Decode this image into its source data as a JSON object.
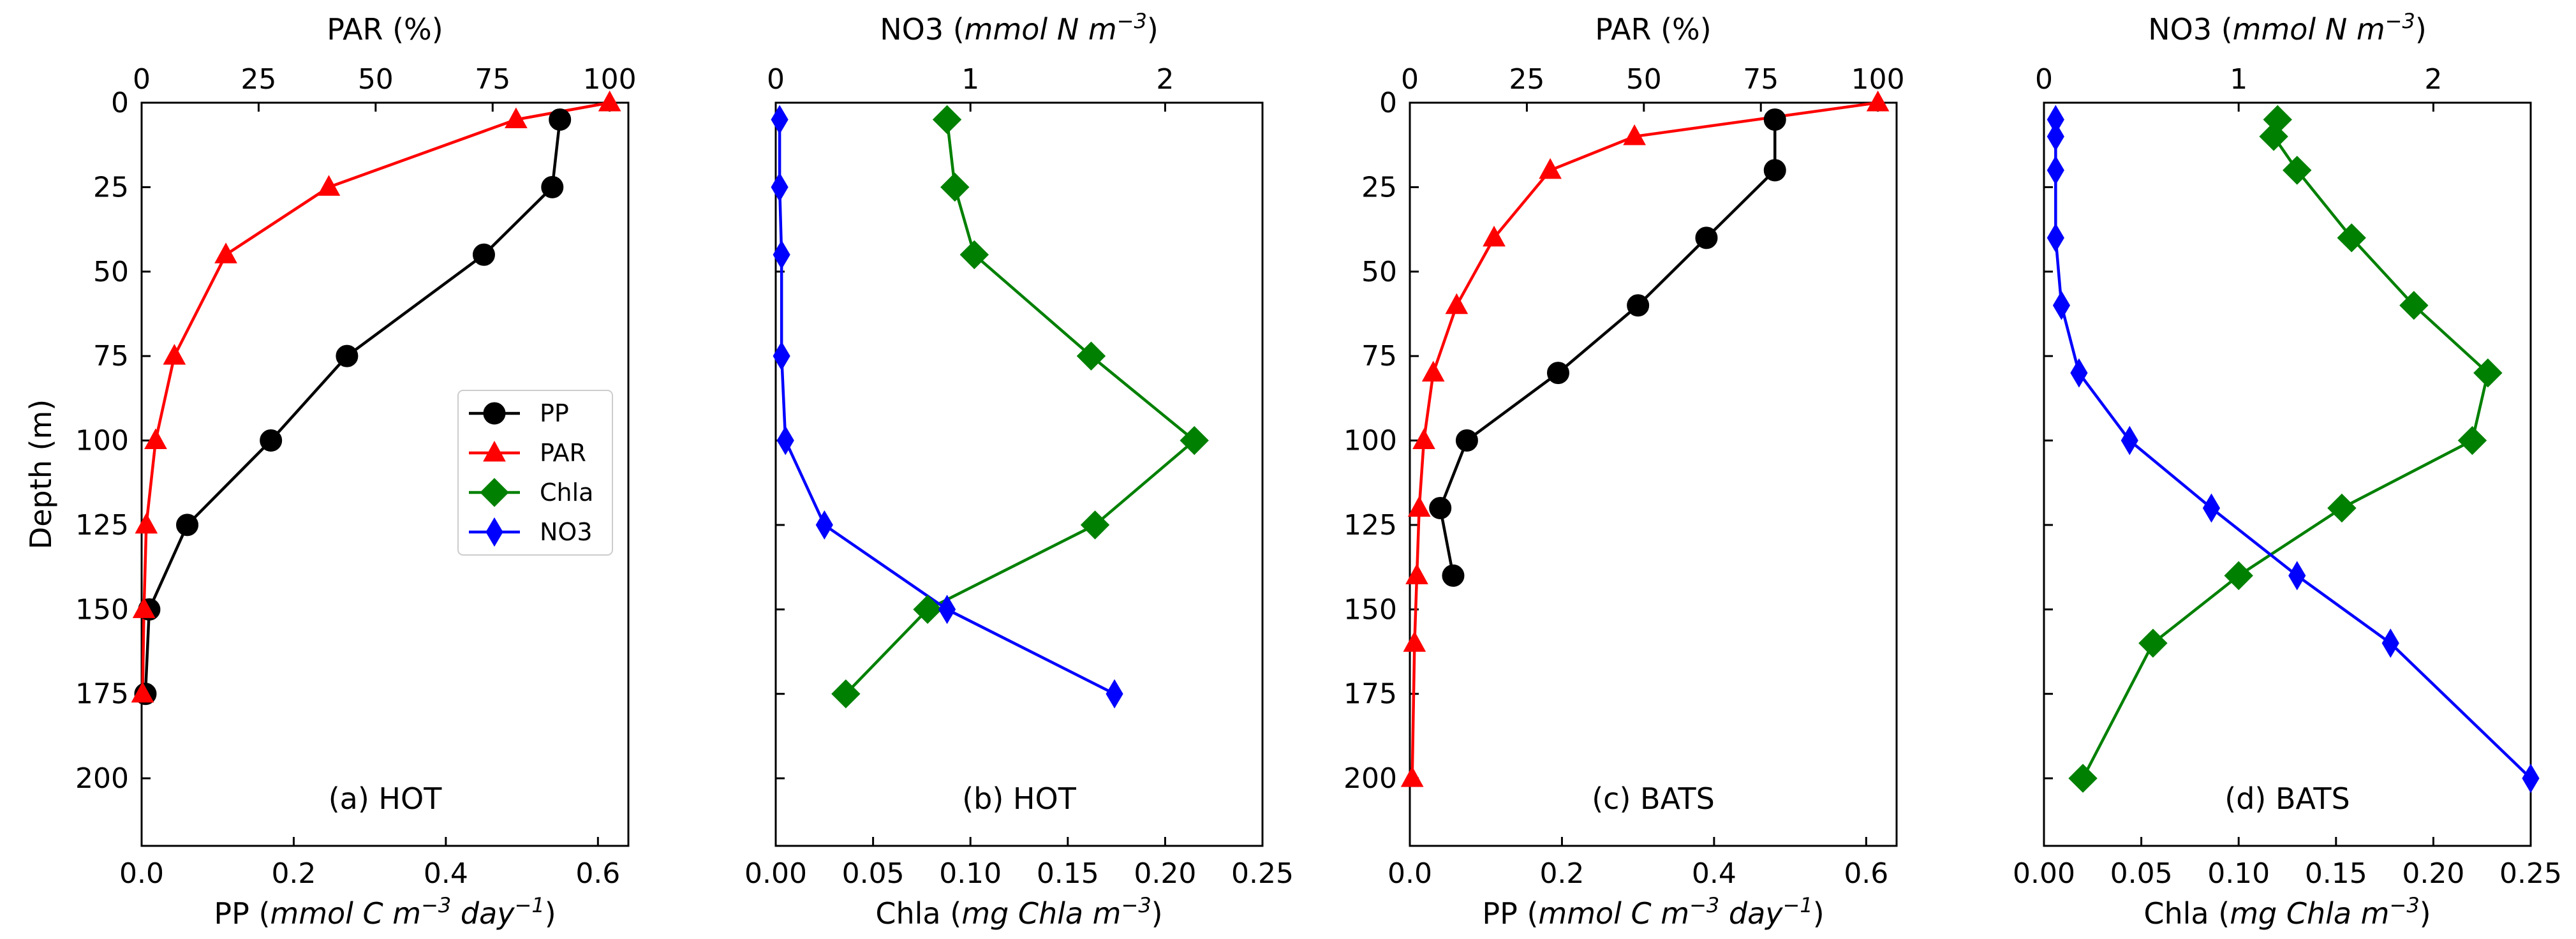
{
  "colors": {
    "PP": "#000000",
    "PAR": "#ff0000",
    "Chla": "#008000",
    "NO3": "#0000ff"
  },
  "legend": [
    "PP",
    "PAR",
    "Chla",
    "NO3"
  ],
  "y_axis": {
    "label": "Depth (m)",
    "range": [
      0,
      220
    ],
    "inverted": true,
    "ticks": [
      "0",
      "25",
      "50",
      "75",
      "100",
      "125",
      "150",
      "175",
      "200"
    ]
  },
  "chart_data": [
    {
      "type": "line",
      "panel_label": "(a) HOT",
      "xlabel": {
        "pre": "PP (",
        "italic": "mmol C m",
        "sup": "−3",
        "italic2": " day",
        "sup2": "−1",
        "post": ")"
      },
      "x2label": {
        "pre": "PAR (%)",
        "italic": "",
        "sup": "",
        "italic2": "",
        "sup2": "",
        "post": ""
      },
      "xlim": [
        0,
        0.64
      ],
      "x2lim": [
        0,
        104
      ],
      "xticks": [
        "0.0",
        "0.2",
        "0.4",
        "0.6"
      ],
      "x2ticks": [
        "0",
        "25",
        "50",
        "75",
        "100"
      ],
      "series": [
        {
          "name": "PP",
          "axis": "bottom",
          "marker": "circle",
          "points": [
            [
              0.55,
              5
            ],
            [
              0.54,
              25
            ],
            [
              0.45,
              45
            ],
            [
              0.27,
              75
            ],
            [
              0.17,
              100
            ],
            [
              0.06,
              125
            ],
            [
              0.01,
              150
            ],
            [
              0.005,
              175
            ]
          ]
        },
        {
          "name": "PAR",
          "axis": "top",
          "marker": "triangle",
          "points": [
            [
              100,
              0
            ],
            [
              80,
              5
            ],
            [
              40,
              25
            ],
            [
              18,
              45
            ],
            [
              7,
              75
            ],
            [
              3,
              100
            ],
            [
              1,
              125
            ],
            [
              0.5,
              150
            ],
            [
              0.2,
              175
            ]
          ]
        }
      ]
    },
    {
      "type": "line",
      "panel_label": "(b) HOT",
      "xlabel": {
        "pre": "Chla (",
        "italic": "mg Chla m",
        "sup": "−3",
        "italic2": "",
        "sup2": "",
        "post": ")"
      },
      "x2label": {
        "pre": "NO3 (",
        "italic": "mmol N m",
        "sup": "−3",
        "italic2": "",
        "sup2": "",
        "post": ")"
      },
      "xlim": [
        0,
        0.25
      ],
      "x2lim": [
        0,
        2.5
      ],
      "xticks": [
        "0.00",
        "0.05",
        "0.10",
        "0.15",
        "0.20",
        "0.25"
      ],
      "x2ticks": [
        "0",
        "1",
        "2"
      ],
      "series": [
        {
          "name": "Chla",
          "axis": "bottom",
          "marker": "diamond",
          "points": [
            [
              0.088,
              5
            ],
            [
              0.092,
              25
            ],
            [
              0.102,
              45
            ],
            [
              0.162,
              75
            ],
            [
              0.215,
              100
            ],
            [
              0.164,
              125
            ],
            [
              0.078,
              150
            ],
            [
              0.036,
              175
            ]
          ]
        },
        {
          "name": "NO3",
          "axis": "top",
          "marker": "thin_diamond",
          "points": [
            [
              0.02,
              5
            ],
            [
              0.02,
              25
            ],
            [
              0.03,
              45
            ],
            [
              0.03,
              75
            ],
            [
              0.05,
              100
            ],
            [
              0.25,
              125
            ],
            [
              0.88,
              150
            ],
            [
              1.74,
              175
            ]
          ]
        }
      ]
    },
    {
      "type": "line",
      "panel_label": "(c) BATS",
      "xlabel": {
        "pre": "PP (",
        "italic": "mmol C m",
        "sup": "−3",
        "italic2": " day",
        "sup2": "−1",
        "post": ")"
      },
      "x2label": {
        "pre": "PAR (%)",
        "italic": "",
        "sup": "",
        "italic2": "",
        "sup2": "",
        "post": ""
      },
      "xlim": [
        0,
        0.64
      ],
      "x2lim": [
        0,
        104
      ],
      "xticks": [
        "0.0",
        "0.2",
        "0.4",
        "0.6"
      ],
      "x2ticks": [
        "0",
        "25",
        "50",
        "75",
        "100"
      ],
      "series": [
        {
          "name": "PP",
          "axis": "bottom",
          "marker": "circle",
          "points": [
            [
              0.48,
              5
            ],
            [
              0.48,
              20
            ],
            [
              0.39,
              40
            ],
            [
              0.3,
              60
            ],
            [
              0.195,
              80
            ],
            [
              0.075,
              100
            ],
            [
              0.04,
              120
            ],
            [
              0.057,
              140
            ]
          ]
        },
        {
          "name": "PAR",
          "axis": "top",
          "marker": "triangle",
          "points": [
            [
              100,
              0
            ],
            [
              48,
              10
            ],
            [
              30,
              20
            ],
            [
              18,
              40
            ],
            [
              10,
              60
            ],
            [
              5,
              80
            ],
            [
              3,
              100
            ],
            [
              2,
              120
            ],
            [
              1.5,
              140
            ],
            [
              1,
              160
            ],
            [
              0.5,
              200
            ]
          ]
        }
      ]
    },
    {
      "type": "line",
      "panel_label": "(d) BATS",
      "xlabel": {
        "pre": "Chla (",
        "italic": "mg Chla m",
        "sup": "−3",
        "italic2": "",
        "sup2": "",
        "post": ")"
      },
      "x2label": {
        "pre": "NO3 (",
        "italic": "mmol N m",
        "sup": "−3",
        "italic2": "",
        "sup2": "",
        "post": ")"
      },
      "xlim": [
        0,
        0.25
      ],
      "x2lim": [
        0,
        2.5
      ],
      "xticks": [
        "0.00",
        "0.05",
        "0.10",
        "0.15",
        "0.20",
        "0.25"
      ],
      "x2ticks": [
        "0",
        "1",
        "2"
      ],
      "series": [
        {
          "name": "Chla",
          "axis": "bottom",
          "marker": "diamond",
          "points": [
            [
              0.12,
              5
            ],
            [
              0.118,
              10
            ],
            [
              0.13,
              20
            ],
            [
              0.158,
              40
            ],
            [
              0.19,
              60
            ],
            [
              0.228,
              80
            ],
            [
              0.22,
              100
            ],
            [
              0.153,
              120
            ],
            [
              0.1,
              140
            ],
            [
              0.056,
              160
            ],
            [
              0.02,
              200
            ]
          ]
        },
        {
          "name": "NO3",
          "axis": "top",
          "marker": "thin_diamond",
          "points": [
            [
              0.06,
              5
            ],
            [
              0.06,
              10
            ],
            [
              0.06,
              20
            ],
            [
              0.06,
              40
            ],
            [
              0.09,
              60
            ],
            [
              0.18,
              80
            ],
            [
              0.44,
              100
            ],
            [
              0.86,
              120
            ],
            [
              1.3,
              140
            ],
            [
              1.78,
              160
            ],
            [
              2.5,
              200
            ]
          ]
        }
      ]
    }
  ]
}
